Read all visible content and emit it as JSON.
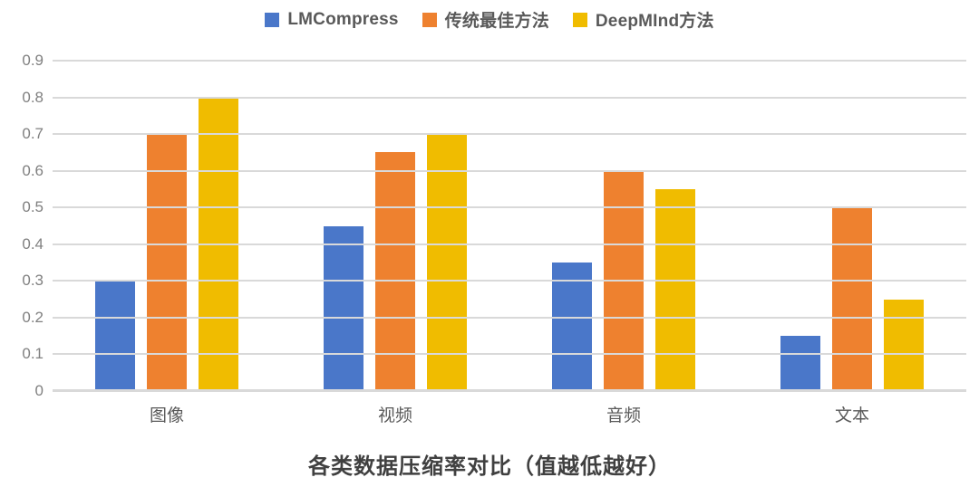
{
  "chart_data": {
    "type": "bar",
    "title": "各类数据压缩率对比（值越低越好）",
    "title_position": "bottom",
    "categories": [
      "图像",
      "视频",
      "音频",
      "文本"
    ],
    "series": [
      {
        "name": "LMCompress",
        "color": "#4A77C9",
        "values": [
          0.3,
          0.45,
          0.35,
          0.15
        ]
      },
      {
        "name": "传统最佳方法",
        "color": "#EE812F",
        "values": [
          0.7,
          0.65,
          0.6,
          0.5
        ]
      },
      {
        "name": "DeepMInd方法",
        "color": "#F0BC00",
        "values": [
          0.8,
          0.7,
          0.55,
          0.25
        ]
      }
    ],
    "ylim": [
      0,
      0.9
    ],
    "yticks": [
      "0",
      "0.1",
      "0.2",
      "0.3",
      "0.4",
      "0.5",
      "0.6",
      "0.7",
      "0.8",
      "0.9"
    ],
    "grid": true,
    "gridlines_over_bars": true,
    "legend_position": "top",
    "colors": {
      "gridline": "#D9D9D9",
      "ytick_label": "#808080",
      "category_label": "#595959",
      "legend_label": "#595959",
      "title": "#404040",
      "background": "#FFFFFF"
    }
  }
}
